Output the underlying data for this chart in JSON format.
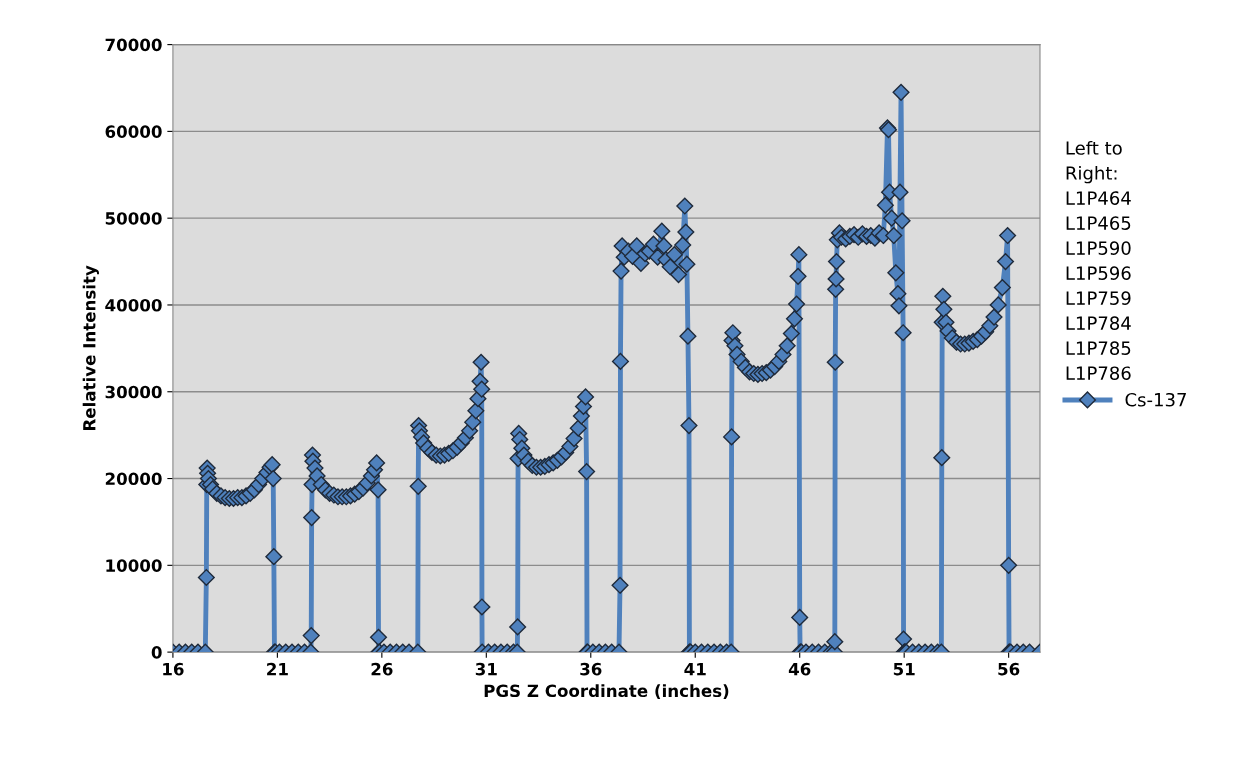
{
  "chart_data": {
    "type": "line",
    "xlabel": "PGS Z Coordinate (inches)",
    "ylabel": "Relative Intensity",
    "legend_title": "Left to\nRight:\nL1P464\nL1P465\nL1P590\nL1P596\nL1P759\nL1P784\nL1P785\nL1P786",
    "xlim": [
      16,
      57.5
    ],
    "xticks": [
      16,
      21,
      26,
      31,
      36,
      41,
      46,
      51,
      56
    ],
    "ylim": [
      0,
      70000
    ],
    "yticks": [
      0,
      10000,
      20000,
      30000,
      40000,
      50000,
      60000,
      70000
    ],
    "grid": "y",
    "legend": "right",
    "marker": "diamond",
    "line_style": "solid",
    "series": [
      {
        "name": "Cs-137",
        "color": "#4f81bd",
        "x": [
          16.0,
          16.3,
          16.6,
          16.9,
          17.2,
          17.55,
          17.6,
          17.62,
          17.64,
          17.66,
          17.7,
          17.8,
          17.9,
          18.1,
          18.3,
          18.5,
          18.7,
          18.9,
          19.1,
          19.3,
          19.5,
          19.7,
          19.9,
          20.1,
          20.3,
          20.5,
          20.65,
          20.75,
          20.8,
          20.83,
          20.86,
          20.9,
          21.1,
          21.4,
          21.7,
          22.0,
          22.3,
          22.6,
          22.62,
          22.64,
          22.66,
          22.68,
          22.7,
          22.8,
          22.9,
          23.1,
          23.3,
          23.5,
          23.7,
          23.9,
          24.1,
          24.3,
          24.5,
          24.7,
          24.9,
          25.1,
          25.3,
          25.5,
          25.65,
          25.75,
          25.82,
          25.84,
          25.86,
          25.88,
          26.1,
          26.4,
          26.7,
          27.0,
          27.3,
          27.72,
          27.74,
          27.76,
          27.8,
          27.9,
          28.0,
          28.2,
          28.4,
          28.6,
          28.8,
          29.0,
          29.2,
          29.4,
          29.6,
          29.8,
          30.0,
          30.2,
          30.35,
          30.5,
          30.6,
          30.7,
          30.75,
          30.78,
          30.79,
          30.8,
          31.1,
          31.4,
          31.7,
          32.0,
          32.3,
          32.48,
          32.5,
          32.52,
          32.55,
          32.6,
          32.7,
          32.8,
          33.0,
          33.2,
          33.4,
          33.6,
          33.8,
          34.0,
          34.2,
          34.4,
          34.6,
          34.8,
          35.0,
          35.2,
          35.4,
          35.55,
          35.65,
          35.75,
          35.8,
          35.82,
          35.85,
          36.1,
          36.4,
          36.7,
          37.0,
          37.35,
          37.4,
          37.42,
          37.45,
          37.5,
          37.6,
          37.8,
          38.0,
          38.2,
          38.4,
          38.6,
          38.8,
          39.0,
          39.2,
          39.4,
          39.5,
          39.6,
          39.8,
          40.0,
          40.2,
          40.4,
          40.5,
          40.55,
          40.6,
          40.65,
          40.7,
          40.72,
          40.75,
          40.78,
          41.0,
          41.3,
          41.6,
          41.9,
          42.2,
          42.5,
          42.72,
          42.74,
          42.76,
          42.8,
          42.9,
          43.0,
          43.2,
          43.4,
          43.6,
          43.8,
          44.0,
          44.2,
          44.4,
          44.6,
          44.8,
          45.0,
          45.2,
          45.4,
          45.6,
          45.75,
          45.85,
          45.92,
          45.96,
          46.0,
          46.02,
          46.05,
          46.08,
          46.3,
          46.6,
          46.9,
          47.2,
          47.5,
          47.66,
          47.68,
          47.7,
          47.72,
          47.74,
          47.76,
          47.8,
          47.9,
          48.0,
          48.2,
          48.4,
          48.6,
          48.8,
          49.0,
          49.2,
          49.4,
          49.6,
          49.8,
          50.0,
          50.1,
          50.2,
          50.25,
          50.3,
          50.4,
          50.5,
          50.6,
          50.7,
          50.75,
          50.8,
          50.85,
          50.9,
          50.95,
          50.97,
          51.0,
          51.02,
          51.04,
          51.06,
          51.1,
          51.4,
          51.7,
          52.0,
          52.3,
          52.6,
          52.78,
          52.8,
          52.82,
          52.85,
          52.9,
          53.0,
          53.1,
          53.3,
          53.5,
          53.7,
          53.9,
          54.1,
          54.3,
          54.5,
          54.7,
          54.9,
          55.1,
          55.3,
          55.5,
          55.7,
          55.85,
          55.95,
          56.0,
          56.02,
          56.04,
          56.1,
          56.4,
          56.7,
          57.0,
          57.5
        ],
        "values": [
          0,
          0,
          0,
          0,
          0,
          0,
          8600,
          19300,
          21200,
          20600,
          20000,
          19300,
          18800,
          18300,
          18000,
          17800,
          17700,
          17700,
          17800,
          17800,
          18000,
          18300,
          18700,
          19300,
          20000,
          20700,
          21300,
          21600,
          20000,
          11000,
          0,
          0,
          0,
          0,
          0,
          0,
          0,
          0,
          1900,
          15500,
          19300,
          22700,
          22000,
          21200,
          20300,
          19300,
          18700,
          18300,
          18100,
          17900,
          17900,
          17900,
          18000,
          18200,
          18500,
          18900,
          19500,
          20300,
          21000,
          21800,
          18700,
          1700,
          0,
          0,
          0,
          0,
          0,
          0,
          0,
          0,
          19100,
          26100,
          25500,
          24800,
          24100,
          23500,
          23000,
          22700,
          22600,
          22700,
          22900,
          23200,
          23600,
          24100,
          24700,
          25500,
          26500,
          27800,
          29200,
          31200,
          33400,
          30300,
          5200,
          0,
          0,
          0,
          0,
          0,
          0,
          0,
          2900,
          22300,
          25200,
          24500,
          23500,
          22700,
          22000,
          21500,
          21300,
          21300,
          21400,
          21600,
          21800,
          22100,
          22500,
          23000,
          23700,
          24600,
          25800,
          27200,
          28300,
          29400,
          20800,
          0,
          0,
          0,
          0,
          0,
          0,
          0,
          7700,
          33500,
          43900,
          46800,
          45500,
          46200,
          45600,
          46800,
          44800,
          45900,
          46200,
          47000,
          45500,
          48500,
          46800,
          45200,
          44400,
          45800,
          43500,
          46900,
          51400,
          48400,
          44700,
          36400,
          26100,
          0,
          0,
          0,
          0,
          0,
          0,
          0,
          0,
          0,
          0,
          24800,
          35900,
          36800,
          35300,
          34300,
          33500,
          32800,
          32300,
          32100,
          32000,
          32100,
          32200,
          32500,
          32900,
          33500,
          34300,
          35300,
          36700,
          38400,
          40100,
          43300,
          45800,
          4000,
          0,
          0,
          0,
          0,
          0,
          0,
          0,
          0,
          0,
          1200,
          33400,
          41800,
          43000,
          45000,
          47500,
          48300,
          47800,
          47600,
          47900,
          48100,
          47800,
          48200,
          47900,
          48000,
          47700,
          48300,
          48000,
          51500,
          60400,
          60200,
          53000,
          50000,
          48000,
          43700,
          41300,
          39900,
          53000,
          64500,
          49700,
          36800,
          1500,
          0,
          0,
          0,
          0,
          0,
          0,
          0,
          0,
          0,
          0,
          0,
          22400,
          38000,
          41000,
          39500,
          38000,
          37000,
          36200,
          35700,
          35500,
          35500,
          35600,
          35800,
          36000,
          36400,
          36900,
          37600,
          38600,
          40000,
          42000,
          45000,
          48000,
          10000,
          0,
          0,
          0,
          0,
          0,
          0,
          0
        ]
      }
    ]
  }
}
